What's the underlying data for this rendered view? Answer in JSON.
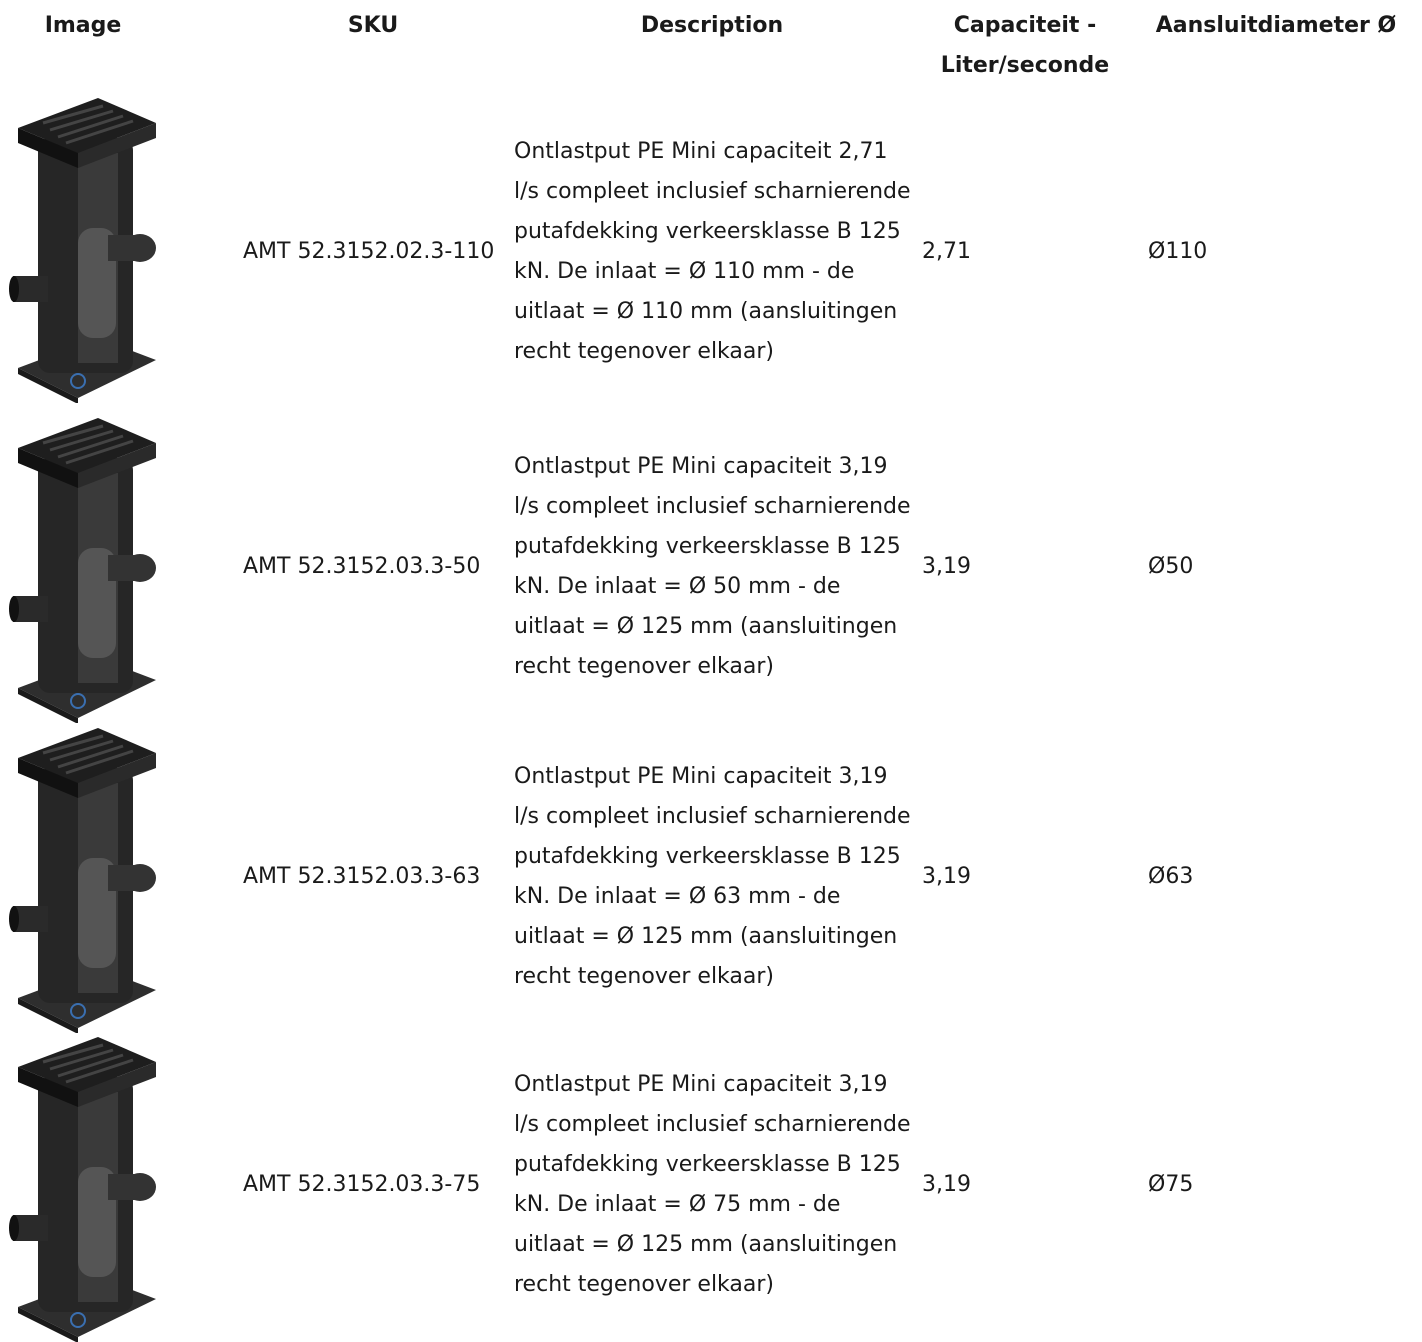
{
  "table": {
    "headers": [
      "Image",
      "SKU",
      "Description",
      "Capaciteit - Liter/seconde",
      "Aansluitdiameter Ø"
    ],
    "rows": [
      {
        "sku": "AMT 52.3152.02.3-110",
        "description": "Ontlastput PE Mini capaciteit 2,71 l/s compleet inclusief scharnierende putafdekking verkeersklasse B 125 kN. De inlaat = Ø 110 mm - de uitlaat = Ø 110 mm (aansluitingen recht tegenover elkaar)",
        "capacity": "2,71",
        "diameter": "Ø110"
      },
      {
        "sku": "AMT 52.3152.03.3-50",
        "description": "Ontlastput PE Mini capaciteit 3,19 l/s compleet inclusief scharnierende putafdekking verkeersklasse B 125 kN. De inlaat = Ø 50 mm - de uitlaat = Ø 125 mm (aansluitingen recht tegenover elkaar)",
        "capacity": "3,19",
        "diameter": "Ø50"
      },
      {
        "sku": "AMT 52.3152.03.3-63",
        "description": "Ontlastput PE Mini capaciteit 3,19 l/s compleet inclusief scharnierende putafdekking verkeersklasse B 125 kN. De inlaat = Ø 63 mm - de uitlaat = Ø 125 mm (aansluitingen recht tegenover elkaar)",
        "capacity": "3,19",
        "diameter": "Ø63"
      },
      {
        "sku": "AMT 52.3152.03.3-75",
        "description": "Ontlastput PE Mini capaciteit 3,19 l/s compleet inclusief scharnierende putafdekking verkeersklasse B 125 kN. De inlaat = Ø 75 mm - de uitlaat = Ø 125 mm (aansluitingen recht tegenover elkaar)",
        "capacity": "3,19",
        "diameter": "Ø75"
      }
    ]
  }
}
